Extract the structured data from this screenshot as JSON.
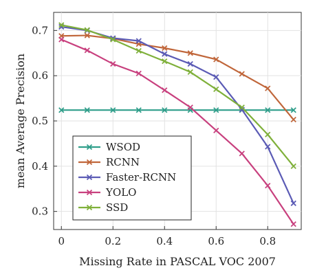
{
  "chart_data": {
    "type": "line",
    "title": "",
    "xlabel": "Missing Rate in PASCAL VOC 2007",
    "ylabel": "mean Average Precision",
    "xlim": [
      -0.03,
      0.93
    ],
    "ylim": [
      0.26,
      0.74
    ],
    "xticks": [
      0,
      0.2,
      0.4,
      0.6,
      0.8
    ],
    "xtick_labels": [
      "0",
      "0.2",
      "0.4",
      "0.6",
      "0.8"
    ],
    "yticks": [
      0.3,
      0.4,
      0.5,
      0.6,
      0.7
    ],
    "ytick_labels": [
      "0.3",
      "0.4",
      "0.5",
      "0.6",
      "0.7"
    ],
    "grid": true,
    "legend": "bottom-left",
    "marker": "x",
    "x": [
      0,
      0.1,
      0.2,
      0.3,
      0.4,
      0.5,
      0.6,
      0.7,
      0.8,
      0.9
    ],
    "series": [
      {
        "name": "WSOD",
        "color": "#2f9e8a",
        "values": [
          0.524,
          0.524,
          0.524,
          0.524,
          0.524,
          0.524,
          0.524,
          0.524,
          0.524,
          0.524
        ]
      },
      {
        "name": "RCNN",
        "color": "#c0663a",
        "values": [
          0.688,
          0.689,
          0.682,
          0.67,
          0.661,
          0.65,
          0.636,
          0.604,
          0.572,
          0.503
        ]
      },
      {
        "name": "Faster-RCNN",
        "color": "#5b5bb5",
        "values": [
          0.708,
          0.7,
          0.683,
          0.677,
          0.648,
          0.626,
          0.597,
          0.525,
          0.443,
          0.318
        ]
      },
      {
        "name": "YOLO",
        "color": "#c8407e",
        "values": [
          0.68,
          0.656,
          0.626,
          0.605,
          0.568,
          0.53,
          0.479,
          0.428,
          0.357,
          0.272
        ]
      },
      {
        "name": "SSD",
        "color": "#7fb03a",
        "values": [
          0.712,
          0.701,
          0.68,
          0.655,
          0.632,
          0.608,
          0.57,
          0.53,
          0.47,
          0.4
        ]
      }
    ]
  }
}
